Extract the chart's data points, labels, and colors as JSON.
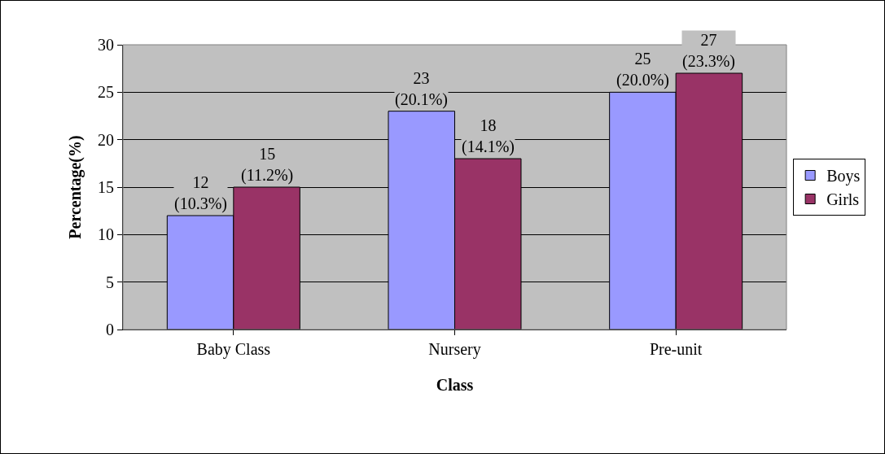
{
  "chart_data": {
    "type": "bar",
    "xlabel": "Class",
    "ylabel": "Percentage(%)",
    "categories": [
      "Baby Class",
      "Nursery",
      "Pre-unit"
    ],
    "series": [
      {
        "name": "Boys",
        "color": "#9999ff",
        "values": [
          12,
          23,
          25
        ],
        "value_labels": [
          "12\n(10.3%)",
          "23\n(20.1%)",
          "25\n(20.0%)"
        ]
      },
      {
        "name": "Girls",
        "color": "#993366",
        "values": [
          15,
          18,
          27
        ],
        "value_labels": [
          "15\n(11.2%)",
          "18\n(14.1%)",
          "27\n(23.3%)"
        ]
      }
    ],
    "ylim": [
      0,
      30
    ],
    "yticks": [
      0,
      5,
      10,
      15,
      20,
      25,
      30
    ],
    "grid": "y",
    "legend": "right"
  }
}
